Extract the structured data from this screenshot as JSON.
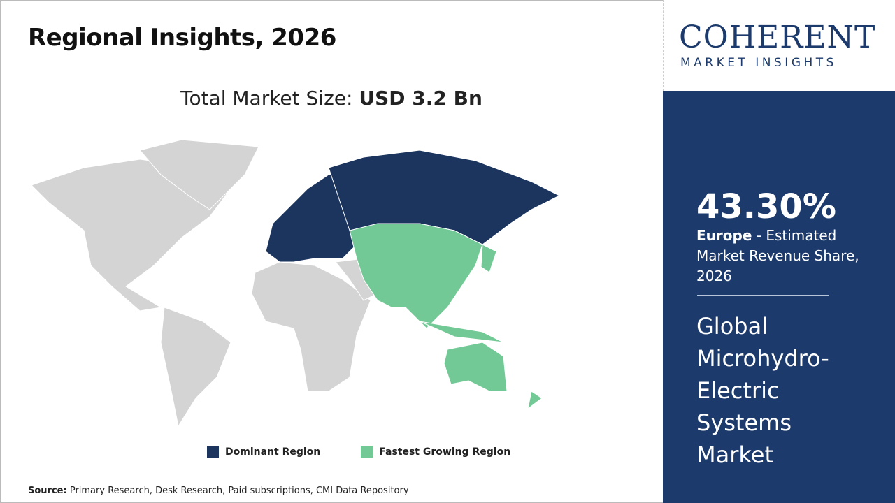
{
  "header": {
    "title": "Regional Insights, 2026"
  },
  "market_size": {
    "label": "Total Market Size:",
    "value": "USD 3.2 Bn"
  },
  "legend": {
    "dominant": "Dominant Region",
    "fastest": "Fastest Growing Region"
  },
  "source": {
    "label": "Source:",
    "text": "Primary Research, Desk Research, Paid subscriptions, CMI Data Repository"
  },
  "logo": {
    "name": "COHERENT",
    "tagline": "MARKET INSIGHTS"
  },
  "highlight": {
    "share": "43.30%",
    "region": "Europe",
    "description": "- Estimated Market Revenue Share, 2026"
  },
  "market": {
    "name": "Global Microhydro-Electric Systems Market"
  }
}
